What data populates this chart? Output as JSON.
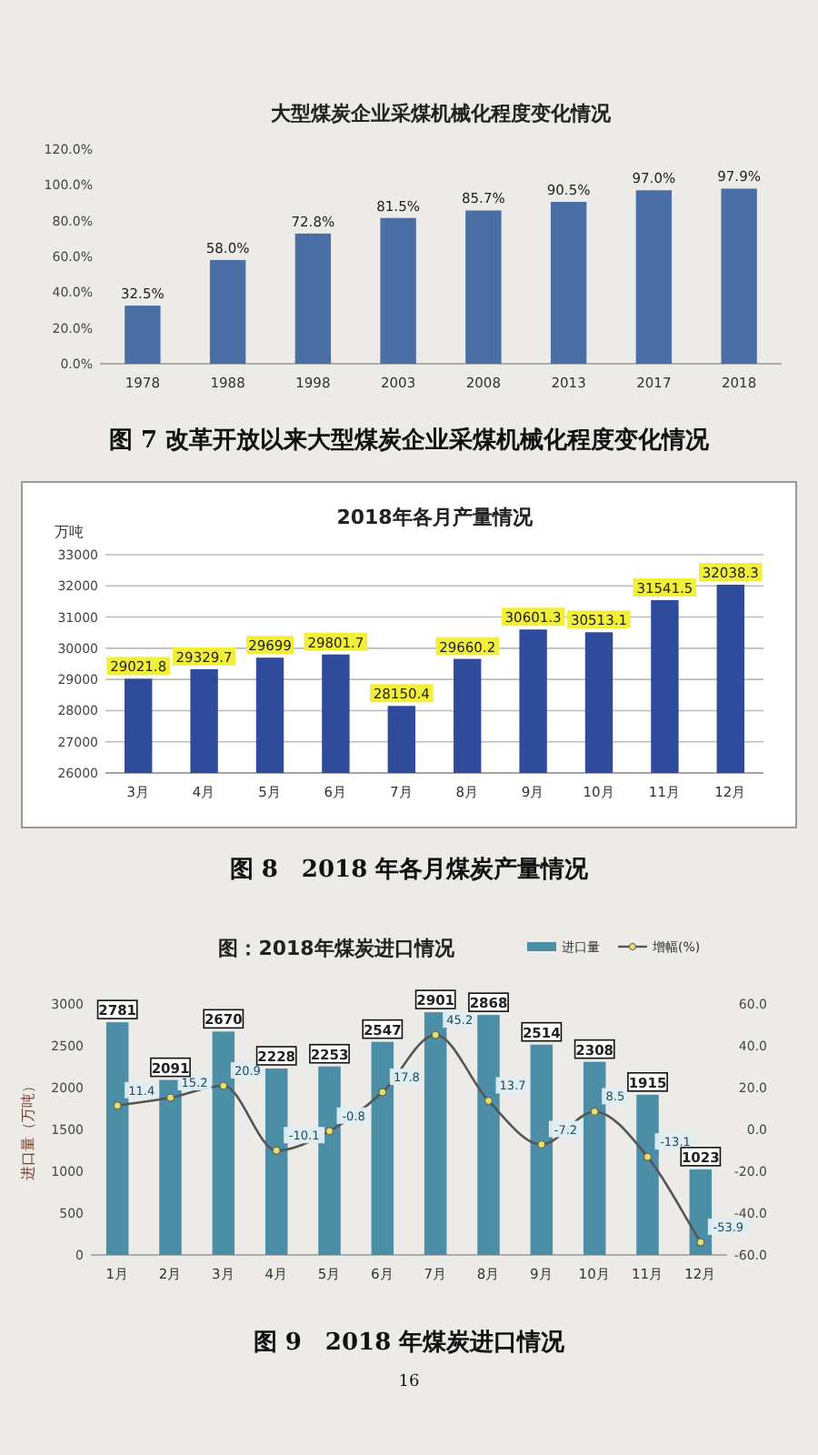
{
  "chart_data": [
    {
      "type": "bar",
      "title": "大型煤炭企业采煤机械化程度变化情况",
      "categories": [
        "1978",
        "1988",
        "1998",
        "2003",
        "2008",
        "2013",
        "2017",
        "2018"
      ],
      "values": [
        32.5,
        58.0,
        72.8,
        81.5,
        85.7,
        90.5,
        97.0,
        97.9
      ],
      "value_labels": [
        "32.5%",
        "58.0%",
        "72.8%",
        "81.5%",
        "85.7%",
        "90.5%",
        "97.0%",
        "97.9%"
      ],
      "color": "#4a6fa5",
      "ylim": [
        0,
        120
      ],
      "yticks": [
        {
          "value": 0,
          "label": "0.0%"
        },
        {
          "value": 20,
          "label": "20.0%"
        },
        {
          "value": 40,
          "label": "40.0%"
        },
        {
          "value": 60,
          "label": "60.0%"
        },
        {
          "value": 80,
          "label": "80.0%"
        },
        {
          "value": 100,
          "label": "100.0%"
        },
        {
          "value": 120,
          "label": "120.0%"
        }
      ],
      "annotations": [
        "图 7 改革开放以来大型煤炭企业采煤机械化程度变化情况"
      ]
    },
    {
      "type": "bar",
      "title": "2018年各月产量情况",
      "ylabel": "万吨",
      "categories": [
        "3月",
        "4月",
        "5月",
        "6月",
        "7月",
        "8月",
        "9月",
        "10月",
        "11月",
        "12月"
      ],
      "values": [
        29021.8,
        29329.7,
        29699,
        29801.7,
        28150.4,
        29660.2,
        30601.3,
        30513.1,
        31541.5,
        32038.3
      ],
      "color": "#2f4b9c",
      "ylim": [
        26000,
        33000
      ],
      "yticks": [
        26000,
        27000,
        28000,
        29000,
        30000,
        31000,
        32000,
        33000
      ],
      "grid": "y",
      "data_labels": true,
      "annotations": [
        "图 8　2018 年各月煤炭产量情况"
      ]
    },
    {
      "type": "bar",
      "title": "图：2018年煤炭进口情况",
      "ylabel": "进口量（万吨）",
      "categories": [
        "1月",
        "2月",
        "3月",
        "4月",
        "5月",
        "6月",
        "7月",
        "8月",
        "9月",
        "10月",
        "11月",
        "12月"
      ],
      "series": [
        {
          "name": "进口量",
          "type": "bar",
          "color": "#4b8ea6",
          "values": [
            2781,
            2091,
            2670,
            2228,
            2253,
            2547,
            2901,
            2868,
            2514,
            2308,
            1915,
            1023
          ]
        },
        {
          "name": "增幅(%)",
          "type": "line",
          "axis": "y2",
          "color": "#555555",
          "marker": "circle",
          "values": [
            11.4,
            15.2,
            20.9,
            -10.1,
            -0.8,
            17.8,
            45.2,
            13.7,
            -7.2,
            8.5,
            -13.1,
            -53.9
          ]
        }
      ],
      "ylim": [
        0,
        3000
      ],
      "yticks": [
        0,
        500,
        1000,
        1500,
        2000,
        2500,
        3000
      ],
      "y2lim": [
        -60,
        60
      ],
      "y2ticks": [
        {
          "value": -60,
          "label": "-60.0"
        },
        {
          "value": -40,
          "label": "-40.0"
        },
        {
          "value": -20,
          "label": "-20.0"
        },
        {
          "value": 0,
          "label": "0.0"
        },
        {
          "value": 20,
          "label": "20.0"
        },
        {
          "value": 40,
          "label": "40.0"
        },
        {
          "value": 60,
          "label": "60.0"
        }
      ],
      "legend": "top right",
      "data_labels": true,
      "annotations": [
        "图 9　2018 年煤炭进口情况",
        "16"
      ]
    }
  ]
}
